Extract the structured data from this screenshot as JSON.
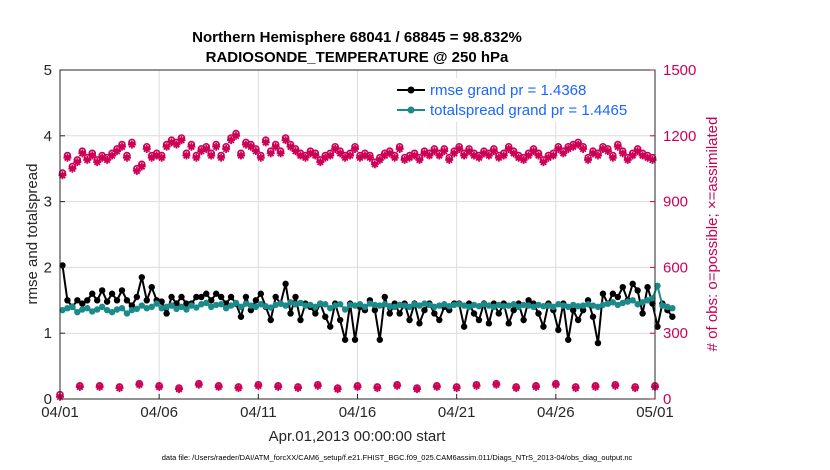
{
  "chart_data": {
    "type": "line",
    "title": [
      "Northern Hemisphere 68041 / 68845 = 98.832%",
      "RADIOSONDE_TEMPERATURE @ 250 hPa"
    ],
    "xlabel": "Apr.01,2013 00:00:00 start",
    "ylabel": "rmse and totalspread",
    "ylabel_right": "# of obs: o=possible; ×=assimilated",
    "xlim": [
      0,
      30
    ],
    "ylim": [
      0,
      5
    ],
    "ylim_right": [
      0,
      1500
    ],
    "x_ticks": [
      0,
      5,
      10,
      15,
      20,
      25,
      30
    ],
    "x_tick_labels": [
      "04/01",
      "04/06",
      "04/11",
      "04/16",
      "04/21",
      "04/26",
      "05/01"
    ],
    "y_ticks": [
      0,
      1,
      2,
      3,
      4,
      5
    ],
    "y_tick_labels": [
      "0",
      "1",
      "2",
      "3",
      "4",
      "5"
    ],
    "y_right_ticks": [
      0,
      300,
      600,
      900,
      1200,
      1500
    ],
    "y_right_tick_labels": [
      "0",
      "300",
      "600",
      "900",
      "1200",
      "1500"
    ],
    "x_step_days": 0.25,
    "x_start_days": 0.125,
    "legend": {
      "position": "top-right",
      "entries": [
        "rmse grand pr = 1.4368",
        "totalspread grand pr = 1.4465"
      ]
    },
    "colors": {
      "rmse": "#000000",
      "spread": "#1a8a8a",
      "obs": "#cc0055",
      "legend_text": "#1a66ff"
    },
    "series": [
      {
        "name": "rmse",
        "axis": "left",
        "values": [
          2.03,
          1.5,
          1.4,
          1.5,
          1.45,
          1.5,
          1.6,
          1.5,
          1.65,
          1.48,
          1.6,
          1.5,
          1.65,
          1.5,
          1.42,
          1.55,
          1.85,
          1.5,
          1.7,
          1.5,
          1.48,
          1.3,
          1.55,
          1.45,
          1.55,
          1.45,
          1.45,
          1.55,
          1.55,
          1.6,
          1.5,
          1.6,
          1.55,
          1.45,
          1.55,
          1.45,
          1.25,
          1.55,
          1.35,
          1.5,
          1.6,
          1.4,
          1.2,
          1.55,
          1.45,
          1.75,
          1.3,
          1.55,
          1.2,
          1.45,
          1.4,
          1.3,
          1.45,
          1.25,
          1.1,
          1.45,
          1.2,
          0.9,
          1.45,
          0.9,
          1.4,
          1.35,
          1.5,
          1.35,
          0.9,
          1.55,
          1.3,
          1.45,
          1.3,
          1.45,
          1.2,
          1.45,
          1.15,
          1.35,
          1.45,
          1.3,
          1.2,
          1.4,
          1.35,
          1.45,
          1.45,
          1.1,
          1.45,
          1.3,
          1.2,
          1.45,
          1.15,
          1.45,
          1.3,
          1.45,
          1.15,
          1.35,
          1.45,
          1.2,
          1.5,
          1.45,
          1.3,
          1.1,
          1.45,
          1.35,
          1.05,
          1.45,
          0.9,
          1.35,
          1.2,
          1.35,
          1.5,
          1.25,
          0.85,
          1.6,
          1.45,
          1.6,
          1.55,
          1.7,
          1.5,
          1.75,
          1.65,
          1.3,
          1.7,
          1.45,
          1.1,
          1.45,
          1.35,
          1.25
        ],
        "markers": "filled-circle"
      },
      {
        "name": "totalspread",
        "axis": "left",
        "values": [
          1.35,
          1.38,
          1.4,
          1.32,
          1.36,
          1.38,
          1.33,
          1.36,
          1.4,
          1.35,
          1.32,
          1.36,
          1.38,
          1.3,
          1.35,
          1.37,
          1.42,
          1.38,
          1.4,
          1.45,
          1.38,
          1.4,
          1.42,
          1.37,
          1.4,
          1.36,
          1.42,
          1.39,
          1.44,
          1.46,
          1.4,
          1.43,
          1.44,
          1.38,
          1.42,
          1.46,
          1.4,
          1.45,
          1.42,
          1.4,
          1.44,
          1.41,
          1.39,
          1.43,
          1.45,
          1.42,
          1.47,
          1.44,
          1.46,
          1.42,
          1.43,
          1.4,
          1.45,
          1.44,
          1.38,
          1.42,
          1.44,
          1.36,
          1.43,
          1.42,
          1.44,
          1.4,
          1.45,
          1.43,
          1.42,
          1.44,
          1.41,
          1.4,
          1.43,
          1.42,
          1.4,
          1.44,
          1.42,
          1.45,
          1.43,
          1.4,
          1.42,
          1.44,
          1.41,
          1.43,
          1.44,
          1.42,
          1.4,
          1.43,
          1.41,
          1.44,
          1.42,
          1.4,
          1.43,
          1.41,
          1.42,
          1.44,
          1.4,
          1.43,
          1.42,
          1.4,
          1.43,
          1.41,
          1.42,
          1.4,
          1.44,
          1.42,
          1.4,
          1.43,
          1.41,
          1.42,
          1.44,
          1.42,
          1.4,
          1.43,
          1.45,
          1.47,
          1.43,
          1.46,
          1.48,
          1.5,
          1.44,
          1.47,
          1.5,
          1.53,
          1.72,
          1.42,
          1.4,
          1.38
        ],
        "markers": "filled-circle"
      },
      {
        "name": "obs_possible",
        "axis": "right",
        "values": [
          1030,
          1110,
          1060,
          1090,
          1130,
          1100,
          1120,
          1090,
          1110,
          1100,
          1120,
          1140,
          1160,
          1110,
          1170,
          1050,
          1070,
          1150,
          1110,
          1120,
          1110,
          1160,
          1180,
          1170,
          1190,
          1120,
          1160,
          1110,
          1140,
          1150,
          1120,
          1160,
          1110,
          1150,
          1190,
          1210,
          1120,
          1170,
          1160,
          1140,
          1110,
          1180,
          1130,
          1160,
          1130,
          1190,
          1160,
          1140,
          1120,
          1110,
          1130,
          1120,
          1090,
          1110,
          1120,
          1150,
          1130,
          1110,
          1120,
          1150,
          1110,
          1120,
          1110,
          1080,
          1100,
          1120,
          1130,
          1110,
          1150,
          1100,
          1110,
          1120,
          1100,
          1130,
          1120,
          1140,
          1120,
          1140,
          1100,
          1130,
          1150,
          1120,
          1140,
          1120,
          1110,
          1130,
          1120,
          1140,
          1110,
          1120,
          1150,
          1130,
          1110,
          1100,
          1120,
          1140,
          1120,
          1090,
          1110,
          1120,
          1150,
          1130,
          1150,
          1160,
          1170,
          1150,
          1100,
          1130,
          1120,
          1150,
          1140,
          1110,
          1160,
          1130,
          1100,
          1120,
          1140,
          1120,
          1110,
          1100
        ],
        "markers": "open-circle"
      },
      {
        "name": "obs_assimilated",
        "axis": "right",
        "values": [
          1020,
          1100,
          1050,
          1080,
          1120,
          1090,
          1110,
          1080,
          1100,
          1090,
          1110,
          1130,
          1150,
          1100,
          1160,
          1040,
          1060,
          1140,
          1100,
          1110,
          1100,
          1150,
          1170,
          1160,
          1180,
          1110,
          1150,
          1100,
          1130,
          1140,
          1110,
          1150,
          1100,
          1140,
          1180,
          1200,
          1110,
          1160,
          1150,
          1130,
          1100,
          1170,
          1120,
          1150,
          1120,
          1180,
          1150,
          1130,
          1110,
          1100,
          1120,
          1110,
          1080,
          1100,
          1110,
          1140,
          1120,
          1100,
          1110,
          1140,
          1100,
          1110,
          1100,
          1070,
          1090,
          1110,
          1120,
          1100,
          1140,
          1090,
          1100,
          1110,
          1090,
          1120,
          1110,
          1130,
          1110,
          1130,
          1090,
          1120,
          1140,
          1110,
          1130,
          1110,
          1100,
          1120,
          1110,
          1130,
          1100,
          1110,
          1140,
          1120,
          1100,
          1090,
          1110,
          1130,
          1110,
          1080,
          1100,
          1110,
          1140,
          1120,
          1140,
          1150,
          1160,
          1140,
          1090,
          1120,
          1110,
          1140,
          1130,
          1100,
          1150,
          1120,
          1090,
          1110,
          1130,
          1110,
          1100,
          1090
        ],
        "markers": "asterisk"
      },
      {
        "name": "obs_possible_low",
        "axis": "right",
        "x_step_days": 1.0,
        "x_start_days": 0.0,
        "values": [
          20,
          60,
          60,
          55,
          70,
          60,
          50,
          70,
          60,
          55,
          65,
          60,
          55,
          65,
          50,
          60,
          55,
          65,
          50,
          60,
          55,
          65,
          70,
          55,
          60,
          70,
          55,
          60,
          65,
          55,
          60
        ],
        "markers": "open-circle"
      },
      {
        "name": "obs_assimilated_low",
        "axis": "right",
        "x_step_days": 1.0,
        "x_start_days": 0.0,
        "values": [
          10,
          55,
          55,
          50,
          65,
          55,
          45,
          65,
          55,
          50,
          60,
          55,
          50,
          60,
          45,
          55,
          50,
          60,
          45,
          55,
          50,
          60,
          65,
          50,
          55,
          65,
          50,
          55,
          60,
          50,
          55
        ],
        "markers": "asterisk"
      }
    ],
    "footer": "data file: /Users/raeder/DAI/ATM_forcXX/CAM6_setup/f.e21.FHIST_BGC.f09_025.CAM6assim.011/Diags_NTrS_2013-04/obs_diag_output.nc"
  }
}
